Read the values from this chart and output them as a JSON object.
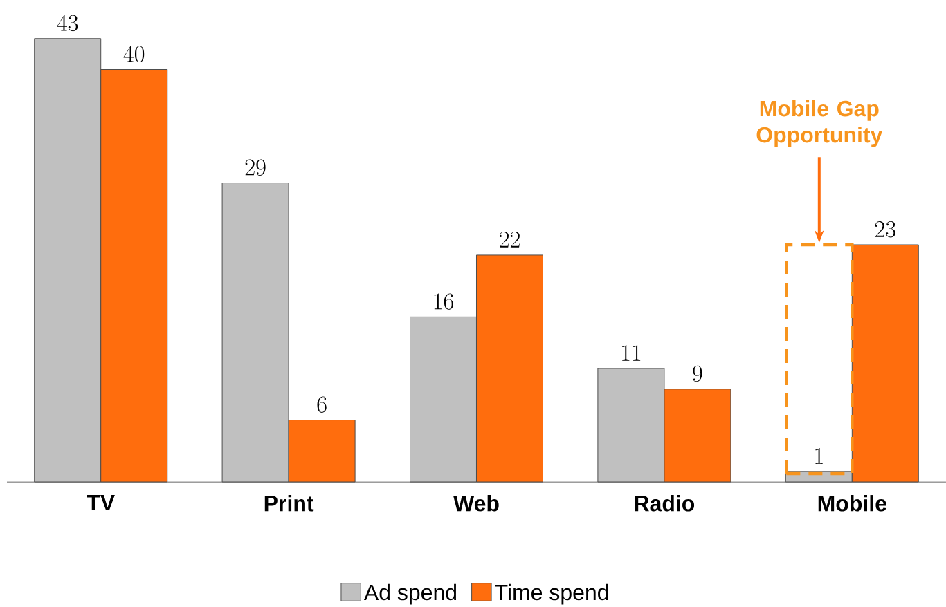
{
  "chart_data": {
    "type": "bar",
    "categories": [
      "TV",
      "Print",
      "Web",
      "Radio",
      "Mobile"
    ],
    "series": [
      {
        "name": "Ad spend",
        "color": "#c0c0c0",
        "values": [
          43,
          29,
          16,
          11,
          1
        ]
      },
      {
        "name": "Time spend",
        "color": "#ff6d0d",
        "values": [
          40,
          6,
          22,
          9,
          23
        ]
      }
    ],
    "data_labels": true,
    "legend": "bottom",
    "grid": false,
    "annotations": [
      "Mobile Gap Opportunity"
    ]
  }
}
